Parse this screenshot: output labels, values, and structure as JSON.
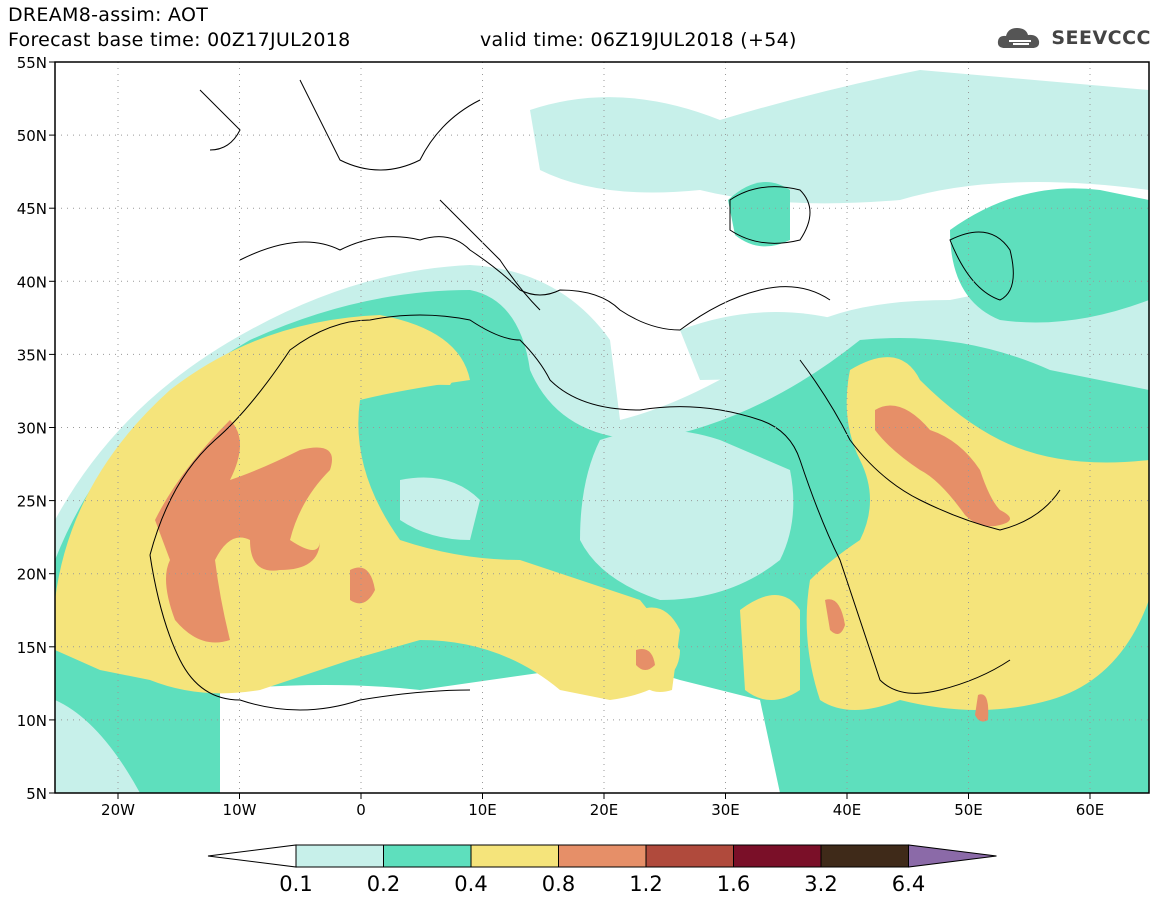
{
  "title": {
    "line1": "DREAM8-assim: AOT",
    "base": "Forecast base time: 00Z17JUL2018",
    "valid": "valid time: 06Z19JUL2018 (+54)"
  },
  "logo": {
    "text": "SEEVCCC",
    "icon": "cloud-icon"
  },
  "map": {
    "lat_labels": [
      "55N",
      "50N",
      "45N",
      "40N",
      "35N",
      "30N",
      "25N",
      "20N",
      "15N",
      "10N",
      "5N"
    ],
    "lon_labels": [
      "20W",
      "10W",
      "0",
      "10E",
      "20E",
      "30E",
      "40E",
      "50E",
      "60E"
    ]
  },
  "legend": {
    "thresholds": [
      "0.1",
      "0.2",
      "0.4",
      "0.8",
      "1.2",
      "1.6",
      "3.2",
      "6.4"
    ],
    "colors": [
      "#ffffff",
      "#c7f0ea",
      "#5edfbd",
      "#f5e47b",
      "#e68f68",
      "#b04a3c",
      "#7a0f28",
      "#3f2a19",
      "#8b6aa8"
    ]
  }
}
